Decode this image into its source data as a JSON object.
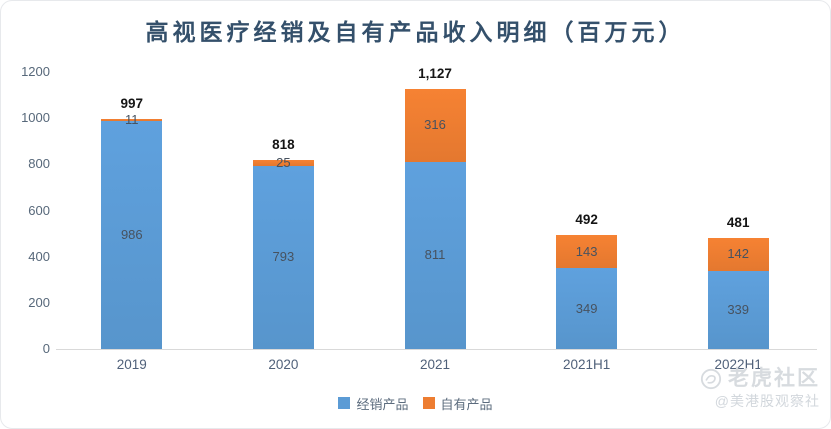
{
  "title": "高视医疗经销及自有产品收入明细（百万元）",
  "chart_data": {
    "type": "bar",
    "stacked": true,
    "title": "高视医疗经销及自有产品收入明细（百万元）",
    "categories": [
      "2019",
      "2020",
      "2021",
      "2021H1",
      "2022H1"
    ],
    "series": [
      {
        "name": "经销产品",
        "color": "#5B9BD5",
        "values": [
          986,
          793,
          811,
          349,
          339
        ]
      },
      {
        "name": "自有产品",
        "color": "#ED7D31",
        "values": [
          11,
          25,
          316,
          143,
          142
        ]
      }
    ],
    "totals": [
      997,
      818,
      1127,
      492,
      481
    ],
    "total_labels": [
      "997",
      "818",
      "1,127",
      "492",
      "481"
    ],
    "ylim": [
      0,
      1200
    ],
    "ytick_step": 200,
    "yticks": [
      "0",
      "200",
      "400",
      "600",
      "800",
      "1000",
      "1200"
    ],
    "grid": false,
    "legend_position": "bottom",
    "axis_line_color": "#d9d9d9",
    "label_color_inside": "#47525f",
    "label_color_total": "#151515"
  },
  "legend": [
    {
      "label": "经销产品",
      "color": "#5B9BD5"
    },
    {
      "label": "自有产品",
      "color": "#ED7D31"
    }
  ],
  "watermark": {
    "logo": "tiger-logo",
    "line1": "老虎社区",
    "line2": "@美港股观察社"
  }
}
